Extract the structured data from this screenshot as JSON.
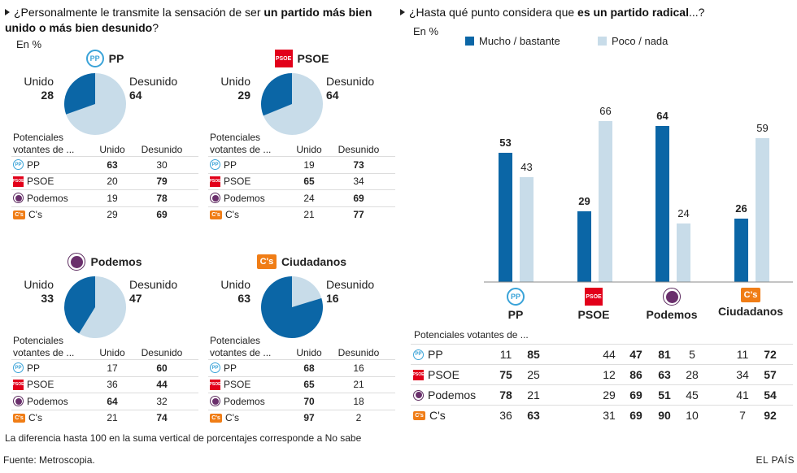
{
  "left": {
    "question_pre": "¿Personalmente le transmite la sensación de ser ",
    "question_bold": "un partido más bien unido o más bien desunido",
    "question_post": "?",
    "unit": "En %",
    "panels": [
      {
        "party": "PP",
        "logo": "pp",
        "unido_label": "Unido",
        "desunido_label": "Desunido",
        "unido": 28,
        "desunido": 64,
        "table_header": "Potenciales votantes de ...",
        "col1": "Unido",
        "col2": "Desunido",
        "rows": [
          {
            "party": "PP",
            "logo": "pp",
            "v1": "63",
            "v2": "30",
            "b1": true,
            "b2": false
          },
          {
            "party": "PSOE",
            "logo": "psoe",
            "v1": "20",
            "v2": "79",
            "b1": false,
            "b2": true
          },
          {
            "party": "Podemos",
            "logo": "pod",
            "v1": "19",
            "v2": "78",
            "b1": false,
            "b2": true
          },
          {
            "party": "C's",
            "logo": "cs",
            "v1": "29",
            "v2": "69",
            "b1": false,
            "b2": true
          }
        ]
      },
      {
        "party": "PSOE",
        "logo": "psoe",
        "unido_label": "Unido",
        "desunido_label": "Desunido",
        "unido": 29,
        "desunido": 64,
        "table_header": "Potenciales votantes de ...",
        "col1": "Unido",
        "col2": "Desunido",
        "rows": [
          {
            "party": "PP",
            "logo": "pp",
            "v1": "19",
            "v2": "73",
            "b1": false,
            "b2": true
          },
          {
            "party": "PSOE",
            "logo": "psoe",
            "v1": "65",
            "v2": "34",
            "b1": true,
            "b2": false
          },
          {
            "party": "Podemos",
            "logo": "pod",
            "v1": "24",
            "v2": "69",
            "b1": false,
            "b2": true
          },
          {
            "party": "C's",
            "logo": "cs",
            "v1": "21",
            "v2": "77",
            "b1": false,
            "b2": true
          }
        ]
      },
      {
        "party": "Podemos",
        "logo": "pod",
        "unido_label": "Unido",
        "desunido_label": "Desunido",
        "unido": 33,
        "desunido": 47,
        "table_header": "Potenciales votantes de ...",
        "col1": "Unido",
        "col2": "Desunido",
        "rows": [
          {
            "party": "PP",
            "logo": "pp",
            "v1": "17",
            "v2": "60",
            "b1": false,
            "b2": true
          },
          {
            "party": "PSOE",
            "logo": "psoe",
            "v1": "36",
            "v2": "44",
            "b1": false,
            "b2": true
          },
          {
            "party": "Podemos",
            "logo": "pod",
            "v1": "64",
            "v2": "32",
            "b1": true,
            "b2": false
          },
          {
            "party": "C's",
            "logo": "cs",
            "v1": "21",
            "v2": "74",
            "b1": false,
            "b2": true
          }
        ]
      },
      {
        "party": "Ciudadanos",
        "logo": "cs",
        "unido_label": "Unido",
        "desunido_label": "Desunido",
        "unido": 63,
        "desunido": 16,
        "table_header": "Potenciales votantes de ...",
        "col1": "Unido",
        "col2": "Desunido",
        "rows": [
          {
            "party": "PP",
            "logo": "pp",
            "v1": "68",
            "v2": "16",
            "b1": true,
            "b2": false
          },
          {
            "party": "PSOE",
            "logo": "psoe",
            "v1": "65",
            "v2": "21",
            "b1": true,
            "b2": false
          },
          {
            "party": "Podemos",
            "logo": "pod",
            "v1": "70",
            "v2": "18",
            "b1": true,
            "b2": false
          },
          {
            "party": "C's",
            "logo": "cs",
            "v1": "97",
            "v2": "2",
            "b1": true,
            "b2": false
          }
        ]
      }
    ],
    "note": "La diferencia hasta 100 en la suma vertical de porcentajes corresponde a No sabe"
  },
  "right": {
    "question_pre": "¿Hasta qué punto considera que ",
    "question_bold": "es un partido radical",
    "question_post": "...?",
    "unit": "En %",
    "legend_a": "Mucho / bastante",
    "legend_b": "Poco / nada",
    "table_header": "Potenciales votantes de ...",
    "parties": [
      {
        "name": "PP",
        "logo": "pp"
      },
      {
        "name": "PSOE",
        "logo": "psoe"
      },
      {
        "name": "Podemos",
        "logo": "pod"
      },
      {
        "name": "Ciudadanos",
        "logo": "cs"
      }
    ],
    "table_rows": [
      {
        "party": "PP",
        "logo": "pp",
        "cells": [
          "11",
          "85",
          "44",
          "47",
          "81",
          "5",
          "11",
          "72"
        ],
        "bold": [
          false,
          true,
          false,
          true,
          true,
          false,
          false,
          true
        ]
      },
      {
        "party": "PSOE",
        "logo": "psoe",
        "cells": [
          "75",
          "25",
          "12",
          "86",
          "63",
          "28",
          "34",
          "57"
        ],
        "bold": [
          true,
          false,
          false,
          true,
          true,
          false,
          false,
          true
        ]
      },
      {
        "party": "Podemos",
        "logo": "pod",
        "cells": [
          "78",
          "21",
          "29",
          "69",
          "51",
          "45",
          "41",
          "54"
        ],
        "bold": [
          true,
          false,
          false,
          true,
          true,
          false,
          false,
          true
        ]
      },
      {
        "party": "C's",
        "logo": "cs",
        "cells": [
          "36",
          "63",
          "31",
          "69",
          "90",
          "10",
          "7",
          "92"
        ],
        "bold": [
          false,
          true,
          false,
          true,
          true,
          false,
          false,
          true
        ]
      }
    ]
  },
  "chart_data": [
    {
      "type": "pie",
      "title": "PP",
      "categories": [
        "Unido",
        "Desunido"
      ],
      "values": [
        28,
        64
      ]
    },
    {
      "type": "pie",
      "title": "PSOE",
      "categories": [
        "Unido",
        "Desunido"
      ],
      "values": [
        29,
        64
      ]
    },
    {
      "type": "pie",
      "title": "Podemos",
      "categories": [
        "Unido",
        "Desunido"
      ],
      "values": [
        33,
        47
      ]
    },
    {
      "type": "pie",
      "title": "Ciudadanos",
      "categories": [
        "Unido",
        "Desunido"
      ],
      "values": [
        63,
        16
      ]
    },
    {
      "type": "bar",
      "title": "¿Hasta qué punto considera que es un partido radical...?",
      "categories": [
        "PP",
        "PSOE",
        "Podemos",
        "Ciudadanos"
      ],
      "series": [
        {
          "name": "Mucho / bastante",
          "values": [
            53,
            29,
            64,
            26
          ]
        },
        {
          "name": "Poco / nada",
          "values": [
            43,
            66,
            24,
            59
          ]
        }
      ],
      "ylim": [
        0,
        70
      ],
      "ylabel": "En %"
    }
  ],
  "colors": {
    "dark": "#0b66a6",
    "light": "#c8dce9",
    "pp": "#3aa3d8",
    "psoe": "#e2001a",
    "podemos": "#6a2f6c",
    "cs": "#f07d16"
  },
  "footer": {
    "source": "Fuente: Metroscopia.",
    "brand": "EL PAÍS"
  }
}
